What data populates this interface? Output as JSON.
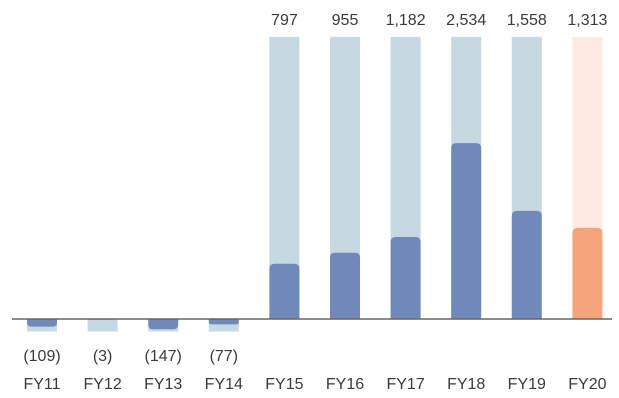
{
  "chart_data": {
    "type": "bar",
    "categories": [
      "FY11",
      "FY12",
      "FY13",
      "FY14",
      "FY15",
      "FY16",
      "FY17",
      "FY18",
      "FY19",
      "FY20"
    ],
    "value_labels": [
      "(109)",
      "(3)",
      "(147)",
      "(77)",
      "797",
      "955",
      "1,182",
      "2,534",
      "1,558",
      "1,313"
    ],
    "series": [
      {
        "values": [
          -109,
          -3,
          -147,
          -77,
          797,
          955,
          1182,
          2534,
          1558,
          1313
        ]
      }
    ],
    "background_bar_top": 4065,
    "background_bar_bottom": -180,
    "highlight_category": "FY20",
    "colors": {
      "bar": "#7189b8",
      "bar_background": "#c6d8e2",
      "highlight_bar": "#f5a47c",
      "highlight_background": "#fdebe3",
      "baseline": "#666666"
    },
    "grid": false,
    "legend": "none"
  }
}
